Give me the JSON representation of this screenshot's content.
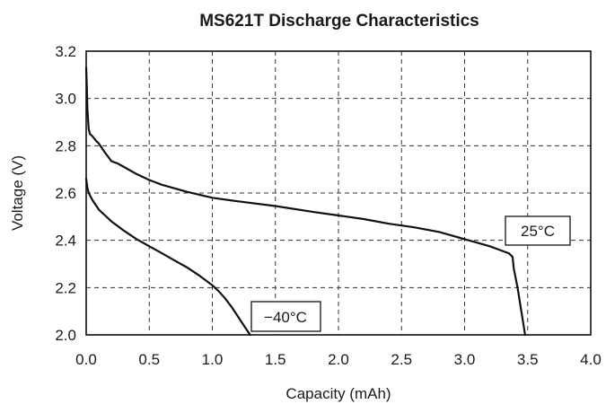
{
  "chart_data": {
    "type": "line",
    "title": "MS621T Discharge Characteristics",
    "xlabel": "Capacity (mAh)",
    "ylabel": "Voltage (V)",
    "xlim": [
      0.0,
      4.0
    ],
    "ylim": [
      2.0,
      3.2
    ],
    "x_ticks": [
      "0.0",
      "0.5",
      "1.0",
      "1.5",
      "2.0",
      "2.5",
      "3.0",
      "3.5",
      "4.0"
    ],
    "y_ticks": [
      "2.0",
      "2.2",
      "2.4",
      "2.6",
      "2.8",
      "3.0",
      "3.2"
    ],
    "grid": true,
    "series": [
      {
        "name": "25°C",
        "x": [
          0.0,
          0.005,
          0.01,
          0.02,
          0.03,
          0.05,
          0.08,
          0.1,
          0.15,
          0.2,
          0.25,
          0.3,
          0.4,
          0.5,
          0.6,
          0.8,
          1.0,
          1.2,
          1.5,
          1.8,
          2.0,
          2.2,
          2.4,
          2.6,
          2.8,
          3.0,
          3.1,
          3.2,
          3.3,
          3.35,
          3.38,
          3.39,
          3.42,
          3.45,
          3.48
        ],
        "y": [
          3.13,
          3.05,
          2.95,
          2.87,
          2.85,
          2.84,
          2.82,
          2.81,
          2.77,
          2.735,
          2.725,
          2.71,
          2.68,
          2.655,
          2.635,
          2.605,
          2.58,
          2.565,
          2.545,
          2.52,
          2.505,
          2.49,
          2.47,
          2.455,
          2.435,
          2.405,
          2.39,
          2.375,
          2.355,
          2.345,
          2.33,
          2.28,
          2.2,
          2.1,
          2.0
        ]
      },
      {
        "name": "−40°C",
        "x": [
          0.0,
          0.005,
          0.01,
          0.02,
          0.05,
          0.1,
          0.2,
          0.3,
          0.4,
          0.5,
          0.6,
          0.7,
          0.8,
          0.9,
          1.0,
          1.05,
          1.1,
          1.15,
          1.2,
          1.25,
          1.3
        ],
        "y": [
          2.66,
          2.64,
          2.62,
          2.6,
          2.57,
          2.53,
          2.48,
          2.44,
          2.405,
          2.375,
          2.345,
          2.315,
          2.285,
          2.25,
          2.21,
          2.185,
          2.155,
          2.12,
          2.08,
          2.04,
          2.0
        ]
      }
    ],
    "annotations": [
      "25°C",
      "−40°C"
    ]
  }
}
